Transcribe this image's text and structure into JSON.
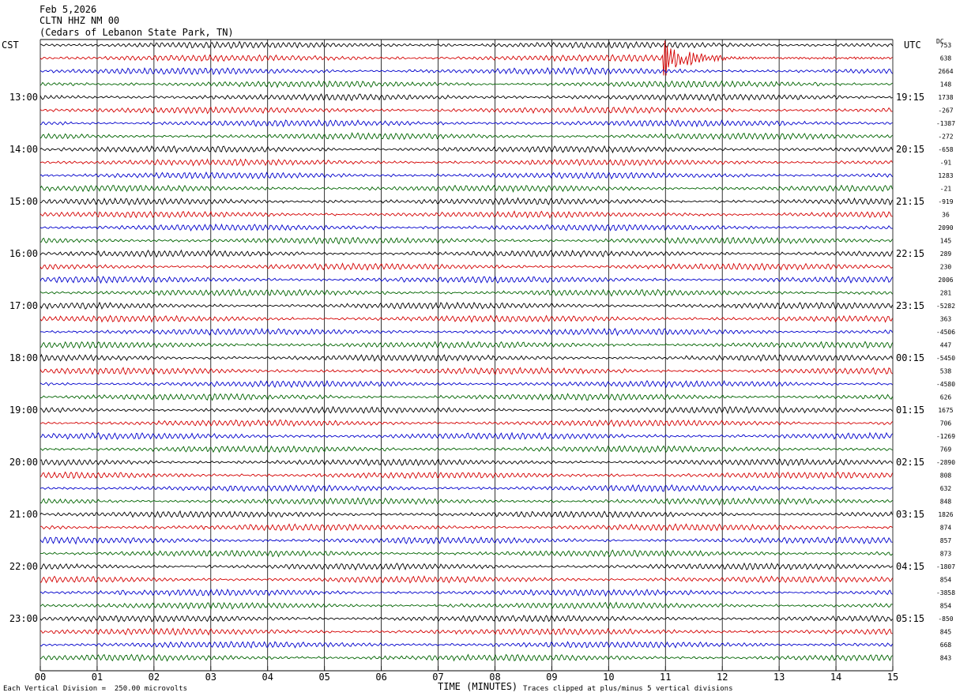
{
  "header": {
    "date": "Feb 5,2026",
    "station": "CLTN HHZ NM 00",
    "location": "(Cedars of Lebanon State Park, TN)"
  },
  "left_zone": "CST",
  "right_zone": "UTC",
  "dc_label": "DC",
  "footer": {
    "scale": "Each Vertical Division =  250.00 microvolts",
    "clip": "Traces clipped at plus/minus 5 vertical divisions",
    "xtitle": "TIME (MINUTES)"
  },
  "colors": {
    "row_cycle": [
      "#000000",
      "#d40000",
      "#0000cc",
      "#006400"
    ],
    "grid": "#000000"
  },
  "chart_data": {
    "type": "line",
    "title": "CLTN HHZ NM 00",
    "xlabel": "TIME (MINUTES)",
    "x_ticks": [
      "00",
      "01",
      "02",
      "03",
      "04",
      "05",
      "06",
      "07",
      "08",
      "09",
      "10",
      "11",
      "12",
      "13",
      "14",
      "15"
    ],
    "xlim": [
      0,
      15
    ],
    "rows_per_hour": 4,
    "minutes_per_row": 15,
    "num_rows": 48,
    "left_hour_labels": [
      "13:00",
      "14:00",
      "15:00",
      "16:00",
      "17:00",
      "18:00",
      "19:00",
      "20:00",
      "21:00",
      "22:00",
      "23:00"
    ],
    "right_hour_labels": [
      "19:15",
      "20:15",
      "21:15",
      "22:15",
      "23:15",
      "00:15",
      "01:15",
      "02:15",
      "03:15",
      "04:15",
      "05:15"
    ],
    "dc_offsets": [
      "753",
      "638",
      "2664",
      "148",
      "1738",
      "-267",
      "-1387",
      "-272",
      "-658",
      "-91",
      "1283",
      "-21",
      "-919",
      "36",
      "2090",
      "145",
      "289",
      "230",
      "2006",
      "281",
      "-5282",
      "363",
      "-4506",
      "447",
      "-5450",
      "538",
      "-4580",
      "626",
      "1675",
      "706",
      "-1269",
      "769",
      "-2890",
      "808",
      "632",
      "848",
      "1826",
      "874",
      "857",
      "873",
      "-1807",
      "854",
      "-3858",
      "854",
      "-850",
      "845",
      "668",
      "843"
    ],
    "events": [
      {
        "row": 1,
        "minute_start": 10.95,
        "minute_end": 15.0,
        "note": "earthquake signal, clipped"
      }
    ]
  }
}
